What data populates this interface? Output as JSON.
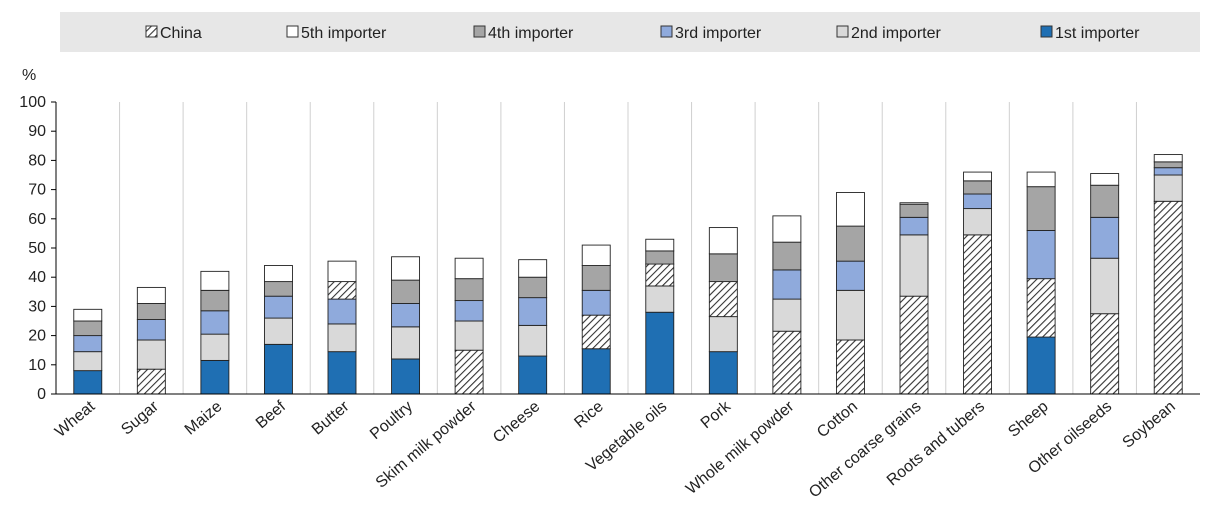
{
  "chart_data": {
    "type": "bar",
    "stacked": true,
    "title": "",
    "xlabel": "",
    "ylabel": "%",
    "ylim": [
      0,
      100
    ],
    "yticks": [
      0,
      10,
      20,
      30,
      40,
      50,
      60,
      70,
      80,
      90,
      100
    ],
    "grid": "vertical",
    "legend_position": "top",
    "legend_order": [
      "China",
      "5th importer",
      "4th importer",
      "3rd importer",
      "2nd importer",
      "1st importer"
    ],
    "categories": [
      "Wheat",
      "Sugar",
      "Maize",
      "Beef",
      "Butter",
      "Poultry",
      "Skim milk powder",
      "Cheese",
      "Rice",
      "Vegetable oils",
      "Pork",
      "Whole milk powder",
      "Cotton",
      "Other coarse grains",
      "Roots and tubers",
      "Sheep",
      "Other oilseeds",
      "Soybean"
    ],
    "series": [
      {
        "name": "1st importer",
        "color": "#1f6fb3",
        "pattern": "solid",
        "values": [
          8,
          0,
          11.5,
          17,
          14.5,
          12,
          0,
          13,
          15.5,
          28,
          14.5,
          0,
          0,
          0,
          0,
          19.5,
          0,
          0
        ]
      },
      {
        "name": "China",
        "color": "#ffffff",
        "pattern": "hatch",
        "values": [
          0,
          8.5,
          0,
          0,
          0,
          0,
          15,
          0,
          11.5,
          0,
          0,
          21.5,
          18.5,
          33.5,
          54.5,
          0,
          27.5,
          66
        ]
      },
      {
        "name": "2nd importer",
        "color": "#d9d9d9",
        "pattern": "solid",
        "values": [
          6.5,
          10,
          9,
          9,
          9.5,
          11,
          10,
          10.5,
          0,
          9,
          12,
          11,
          17,
          21,
          9,
          0,
          19,
          9
        ]
      },
      {
        "name": "China",
        "color": "#ffffff",
        "pattern": "hatch",
        "values": [
          0,
          0,
          0,
          0,
          0,
          0,
          0,
          0,
          0,
          7.5,
          12,
          0,
          0,
          0,
          0,
          20,
          0,
          0
        ]
      },
      {
        "name": "3rd importer",
        "color": "#8faadc",
        "pattern": "solid",
        "values": [
          5.5,
          7,
          8,
          7.5,
          8.5,
          8,
          7,
          9.5,
          8.5,
          0,
          0,
          10,
          10,
          6,
          5,
          16.5,
          14,
          2.5
        ]
      },
      {
        "name": "China",
        "color": "#ffffff",
        "pattern": "hatch",
        "values": [
          0,
          0,
          0,
          0,
          6,
          0,
          0,
          0,
          0,
          0,
          0,
          0,
          0,
          0,
          0,
          0,
          0,
          0
        ]
      },
      {
        "name": "4th importer",
        "color": "#a5a5a5",
        "pattern": "solid",
        "values": [
          5,
          5.5,
          7,
          5,
          0,
          8,
          7.5,
          7,
          8.5,
          4.5,
          9.5,
          9.5,
          12,
          4.5,
          4.5,
          15,
          11,
          2
        ]
      },
      {
        "name": "5th importer",
        "color": "#ffffff",
        "pattern": "solid",
        "values": [
          4,
          5.5,
          6.5,
          5.5,
          7,
          8,
          7,
          6,
          7,
          4,
          9,
          9,
          11.5,
          0.5,
          3,
          5,
          4,
          2.5
        ]
      }
    ],
    "colors": {
      "first": "#1f6fb3",
      "second": "#d9d9d9",
      "third": "#8faadc",
      "fourth": "#a5a5a5",
      "fifth": "#ffffff",
      "legend_bg": "#e7e7e7",
      "grid": "#ffffff",
      "plot_bg": "#ffffff"
    }
  }
}
